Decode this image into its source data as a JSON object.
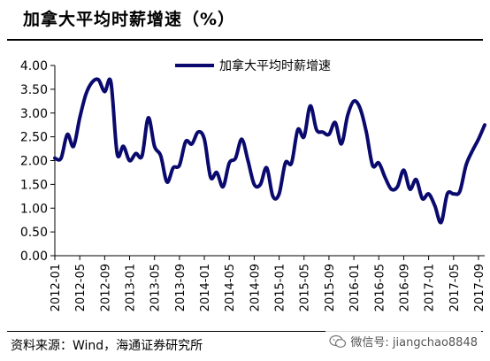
{
  "title": "加拿大平均时薪增速（%）",
  "source": "资料来源：Wind，海通证券研究所",
  "watermark": {
    "icon": "wechat-icon",
    "text": "微信号: jiangchao8848"
  },
  "colors": {
    "series": "#0a0a6e",
    "axis": "#000000"
  },
  "chart_data": {
    "type": "line",
    "title": "加拿大平均时薪增速（%）",
    "xlabel": "",
    "ylabel": "",
    "ylim": [
      0,
      4
    ],
    "yticks": [
      "0.00",
      "0.50",
      "1.00",
      "1.50",
      "2.00",
      "2.50",
      "3.00",
      "3.50",
      "4.00"
    ],
    "x_ticks": [
      "2012-01",
      "2012-05",
      "2012-09",
      "2013-01",
      "2013-05",
      "2013-09",
      "2014-01",
      "2014-05",
      "2014-09",
      "2015-01",
      "2015-05",
      "2015-09",
      "2016-01",
      "2016-05",
      "2016-09",
      "2017-01",
      "2017-05",
      "2017-09"
    ],
    "legend": "top-center",
    "grid": false,
    "series": [
      {
        "name": "加拿大平均时薪增速",
        "x": [
          "2012-01",
          "2012-02",
          "2012-03",
          "2012-04",
          "2012-05",
          "2012-06",
          "2012-07",
          "2012-08",
          "2012-09",
          "2012-10",
          "2012-11",
          "2012-12",
          "2013-01",
          "2013-02",
          "2013-03",
          "2013-04",
          "2013-05",
          "2013-06",
          "2013-07",
          "2013-08",
          "2013-09",
          "2013-10",
          "2013-11",
          "2013-12",
          "2014-01",
          "2014-02",
          "2014-03",
          "2014-04",
          "2014-05",
          "2014-06",
          "2014-07",
          "2014-08",
          "2014-09",
          "2014-10",
          "2014-11",
          "2014-12",
          "2015-01",
          "2015-02",
          "2015-03",
          "2015-04",
          "2015-05",
          "2015-06",
          "2015-07",
          "2015-08",
          "2015-09",
          "2015-10",
          "2015-11",
          "2015-12",
          "2016-01",
          "2016-02",
          "2016-03",
          "2016-04",
          "2016-05",
          "2016-06",
          "2016-07",
          "2016-08",
          "2016-09",
          "2016-10",
          "2016-11",
          "2016-12",
          "2017-01",
          "2017-02",
          "2017-03",
          "2017-04",
          "2017-05",
          "2017-06",
          "2017-07",
          "2017-08",
          "2017-09",
          "2017-10"
        ],
        "values": [
          2.05,
          2.05,
          2.55,
          2.3,
          2.9,
          3.4,
          3.65,
          3.7,
          3.45,
          3.65,
          2.15,
          2.3,
          2.0,
          2.15,
          2.1,
          2.9,
          2.3,
          2.1,
          1.55,
          1.85,
          1.9,
          2.4,
          2.35,
          2.6,
          2.45,
          1.65,
          1.75,
          1.45,
          1.95,
          2.05,
          2.45,
          2.0,
          1.5,
          1.5,
          1.85,
          1.25,
          1.3,
          1.95,
          1.95,
          2.65,
          2.5,
          3.15,
          2.65,
          2.6,
          2.55,
          2.8,
          2.35,
          2.95,
          3.25,
          3.1,
          2.6,
          1.9,
          1.95,
          1.65,
          1.4,
          1.45,
          1.8,
          1.4,
          1.6,
          1.2,
          1.3,
          1.05,
          0.7,
          1.3,
          1.3,
          1.35,
          1.9,
          2.2,
          2.45,
          2.75
        ]
      }
    ]
  }
}
